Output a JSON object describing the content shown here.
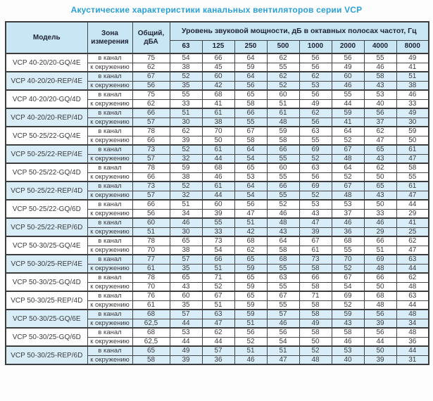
{
  "title": "Акустические характеристики канальных вентиляторов  серии VCP",
  "colors": {
    "title_blue": "#2ba0d8",
    "header_bg": "#c9e6f5",
    "row_highlight_bg": "#d9edf9",
    "border_dark": "#3d3d3d",
    "cell_text": "#3b3b3b"
  },
  "table": {
    "header": {
      "model": "Модель",
      "zone": "Зона измерения",
      "total": "Общий, дБА",
      "bands_title": "Уровень звуковой мощности, дБ в октавных полосах частот, Гц",
      "freqs": [
        "63",
        "125",
        "250",
        "500",
        "1000",
        "2000",
        "4000",
        "8000"
      ]
    },
    "zone_labels": {
      "duct": "в канал",
      "ambient": "к окружению"
    },
    "models": [
      {
        "name": "VCP 40-20/20-GQ/4E",
        "highlight": false,
        "rows": [
          {
            "zone": "в канал",
            "total": "75",
            "bands": [
              "54",
              "66",
              "64",
              "62",
              "56",
              "56",
              "55",
              "49"
            ]
          },
          {
            "zone": "к окружению",
            "total": "62",
            "bands": [
              "38",
              "45",
              "59",
              "55",
              "56",
              "49",
              "46",
              "41"
            ]
          }
        ]
      },
      {
        "name": "VCP 40-20/20-REP/4E",
        "highlight": true,
        "rows": [
          {
            "zone": "в канал",
            "total": "67",
            "bands": [
              "52",
              "60",
              "64",
              "62",
              "62",
              "60",
              "58",
              "51"
            ]
          },
          {
            "zone": "к окружению",
            "total": "56",
            "bands": [
              "35",
              "42",
              "56",
              "52",
              "53",
              "46",
              "43",
              "38"
            ]
          }
        ]
      },
      {
        "name": "VCP 40-20/20-GQ/4D",
        "highlight": false,
        "rows": [
          {
            "zone": "в канал",
            "total": "75",
            "bands": [
              "55",
              "68",
              "65",
              "60",
              "56",
              "55",
              "53",
              "46"
            ]
          },
          {
            "zone": "к окружению",
            "total": "62",
            "bands": [
              "33",
              "41",
              "58",
              "51",
              "49",
              "44",
              "40",
              "33"
            ]
          }
        ]
      },
      {
        "name": "VCP 40-20/20-REP/4D",
        "highlight": true,
        "rows": [
          {
            "zone": "в канал",
            "total": "66",
            "bands": [
              "51",
              "61",
              "66",
              "61",
              "62",
              "59",
              "56",
              "49"
            ]
          },
          {
            "zone": "к окружению",
            "total": "57",
            "bands": [
              "30",
              "38",
              "55",
              "48",
              "56",
              "41",
              "37",
              "30"
            ]
          }
        ]
      },
      {
        "name": "VCP 50-25/22-GQ/4E",
        "highlight": false,
        "rows": [
          {
            "zone": "в канал",
            "total": "78",
            "bands": [
              "62",
              "70",
              "67",
              "59",
              "63",
              "64",
              "62",
              "59"
            ]
          },
          {
            "zone": "к окружению",
            "total": "66",
            "bands": [
              "39",
              "50",
              "58",
              "58",
              "55",
              "52",
              "47",
              "50"
            ]
          }
        ]
      },
      {
        "name": "VCP 50-25/22-REP/4E",
        "highlight": true,
        "rows": [
          {
            "zone": "в канал",
            "total": "73",
            "bands": [
              "52",
              "61",
              "64",
              "66",
              "69",
              "67",
              "65",
              "61"
            ]
          },
          {
            "zone": "к окружению",
            "total": "57",
            "bands": [
              "32",
              "44",
              "54",
              "55",
              "52",
              "48",
              "43",
              "47"
            ]
          }
        ]
      },
      {
        "name": "VCP 50-25/22-GQ/4D",
        "highlight": false,
        "rows": [
          {
            "zone": "в канал",
            "total": "78",
            "bands": [
              "59",
              "68",
              "65",
              "60",
              "63",
              "64",
              "62",
              "58"
            ]
          },
          {
            "zone": "к окружению",
            "total": "66",
            "bands": [
              "38",
              "46",
              "53",
              "55",
              "56",
              "52",
              "50",
              "55"
            ]
          }
        ]
      },
      {
        "name": "VCP 50-25/22-REP/4D",
        "highlight": true,
        "rows": [
          {
            "zone": "в канал",
            "total": "73",
            "bands": [
              "52",
              "61",
              "64",
              "66",
              "69",
              "67",
              "65",
              "61"
            ]
          },
          {
            "zone": "к окружению",
            "total": "57",
            "bands": [
              "32",
              "44",
              "54",
              "55",
              "52",
              "48",
              "43",
              "47"
            ]
          }
        ]
      },
      {
        "name": "VCP 50-25/22-GQ/6D",
        "highlight": false,
        "rows": [
          {
            "zone": "в канал",
            "total": "66",
            "bands": [
              "51",
              "60",
              "56",
              "52",
              "53",
              "53",
              "50",
              "44"
            ]
          },
          {
            "zone": "к окружению",
            "total": "56",
            "bands": [
              "34",
              "39",
              "47",
              "46",
              "43",
              "37",
              "33",
              "29"
            ]
          }
        ]
      },
      {
        "name": "VCP 50-25/22-REP/6D",
        "highlight": true,
        "rows": [
          {
            "zone": "в канал",
            "total": "60",
            "bands": [
              "46",
              "55",
              "51",
              "48",
              "47",
              "46",
              "46",
              "41"
            ]
          },
          {
            "zone": "к окружению",
            "total": "51",
            "bands": [
              "30",
              "33",
              "42",
              "43",
              "39",
              "36",
              "29",
              "25"
            ]
          }
        ]
      },
      {
        "name": "VCP 50-30/25-GQ/4E",
        "highlight": false,
        "rows": [
          {
            "zone": "в канал",
            "total": "78",
            "bands": [
              "65",
              "73",
              "68",
              "64",
              "67",
              "68",
              "66",
              "62"
            ]
          },
          {
            "zone": "к окружению",
            "total": "70",
            "bands": [
              "38",
              "54",
              "62",
              "58",
              "61",
              "55",
              "51",
              "47"
            ]
          }
        ]
      },
      {
        "name": "VCP 50-30/25-REP/4E",
        "highlight": true,
        "rows": [
          {
            "zone": "в канал",
            "total": "77",
            "bands": [
              "57",
              "66",
              "65",
              "68",
              "73",
              "70",
              "69",
              "63"
            ]
          },
          {
            "zone": "к окружению",
            "total": "61",
            "bands": [
              "35",
              "51",
              "59",
              "55",
              "58",
              "52",
              "48",
              "44"
            ]
          }
        ]
      },
      {
        "name": "VCP 50-30/25-GQ/4D",
        "highlight": false,
        "rows": [
          {
            "zone": "в канал",
            "total": "78",
            "bands": [
              "65",
              "71",
              "65",
              "63",
              "66",
              "67",
              "66",
              "62"
            ]
          },
          {
            "zone": "к окружению",
            "total": "70",
            "bands": [
              "43",
              "52",
              "59",
              "55",
              "58",
              "54",
              "50",
              "48"
            ]
          }
        ]
      },
      {
        "name": "VCP 50-30/25-REP/4D",
        "highlight": false,
        "rows": [
          {
            "zone": "в канал",
            "total": "76",
            "bands": [
              "60",
              "67",
              "65",
              "67",
              "71",
              "69",
              "68",
              "63"
            ]
          },
          {
            "zone": "к окружению",
            "total": "61",
            "bands": [
              "35",
              "51",
              "59",
              "55",
              "58",
              "52",
              "48",
              "44"
            ]
          }
        ]
      },
      {
        "name": "VCP 50-30/25-GQ/6E",
        "highlight": true,
        "rows": [
          {
            "zone": "в канал",
            "total": "68",
            "bands": [
              "57",
              "63",
              "59",
              "57",
              "58",
              "59",
              "56",
              "48"
            ]
          },
          {
            "zone": "к окружению",
            "total": "62,5",
            "bands": [
              "44",
              "47",
              "51",
              "46",
              "49",
              "43",
              "39",
              "34"
            ]
          }
        ]
      },
      {
        "name": "VCP 50-30/25-GQ/6D",
        "highlight": false,
        "rows": [
          {
            "zone": "в канал",
            "total": "68",
            "bands": [
              "53",
              "62",
              "56",
              "56",
              "58",
              "58",
              "56",
              "48"
            ]
          },
          {
            "zone": "к окружению",
            "total": "62,5",
            "bands": [
              "44",
              "44",
              "52",
              "54",
              "50",
              "46",
              "44",
              "36"
            ]
          }
        ]
      },
      {
        "name": "VCP 50-30/25-REP/6D",
        "highlight": true,
        "rows": [
          {
            "zone": "в канал",
            "total": "65",
            "bands": [
              "49",
              "57",
              "51",
              "51",
              "52",
              "53",
              "50",
              "44"
            ]
          },
          {
            "zone": "к окружению",
            "total": "58",
            "bands": [
              "39",
              "36",
              "46",
              "47",
              "48",
              "40",
              "39",
              "31"
            ]
          }
        ]
      }
    ]
  }
}
